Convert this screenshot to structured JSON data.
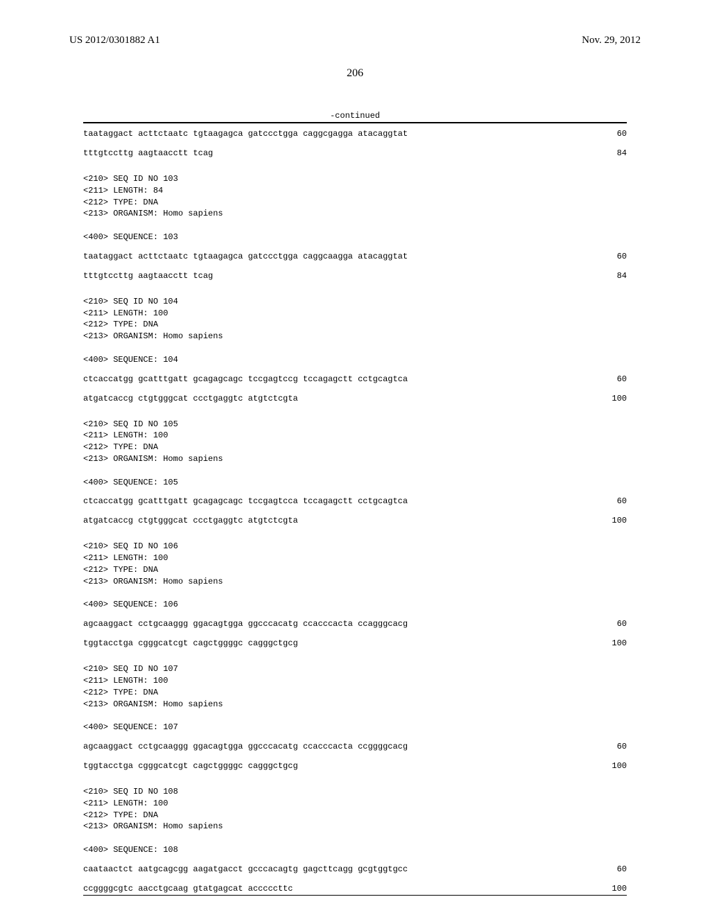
{
  "header": {
    "left": "US 2012/0301882 A1",
    "right": "Nov. 29, 2012"
  },
  "page_number": "206",
  "continued_label": "-continued",
  "entries": [
    {
      "meta": null,
      "sequences": [
        {
          "text": "taataggact acttctaatc tgtaagagca gatccctgga caggcgagga atacaggtat",
          "idx": "60"
        },
        {
          "text": "tttgtccttg aagtaacctt tcag",
          "idx": "84"
        }
      ]
    },
    {
      "meta": "<210> SEQ ID NO 103\n<211> LENGTH: 84\n<212> TYPE: DNA\n<213> ORGANISM: Homo sapiens\n\n<400> SEQUENCE: 103",
      "sequences": [
        {
          "text": "taataggact acttctaatc tgtaagagca gatccctgga caggcaagga atacaggtat",
          "idx": "60"
        },
        {
          "text": "tttgtccttg aagtaacctt tcag",
          "idx": "84"
        }
      ]
    },
    {
      "meta": "<210> SEQ ID NO 104\n<211> LENGTH: 100\n<212> TYPE: DNA\n<213> ORGANISM: Homo sapiens\n\n<400> SEQUENCE: 104",
      "sequences": [
        {
          "text": "ctcaccatgg gcatttgatt gcagagcagc tccgagtccg tccagagctt cctgcagtca",
          "idx": "60"
        },
        {
          "text": "atgatcaccg ctgtgggcat ccctgaggtc atgtctcgta",
          "idx": "100"
        }
      ]
    },
    {
      "meta": "<210> SEQ ID NO 105\n<211> LENGTH: 100\n<212> TYPE: DNA\n<213> ORGANISM: Homo sapiens\n\n<400> SEQUENCE: 105",
      "sequences": [
        {
          "text": "ctcaccatgg gcatttgatt gcagagcagc tccgagtcca tccagagctt cctgcagtca",
          "idx": "60"
        },
        {
          "text": "atgatcaccg ctgtgggcat ccctgaggtc atgtctcgta",
          "idx": "100"
        }
      ]
    },
    {
      "meta": "<210> SEQ ID NO 106\n<211> LENGTH: 100\n<212> TYPE: DNA\n<213> ORGANISM: Homo sapiens\n\n<400> SEQUENCE: 106",
      "sequences": [
        {
          "text": "agcaaggact cctgcaaggg ggacagtgga ggcccacatg ccacccacta ccagggcacg",
          "idx": "60"
        },
        {
          "text": "tggtacctga cgggcatcgt cagctggggc cagggctgcg",
          "idx": "100"
        }
      ]
    },
    {
      "meta": "<210> SEQ ID NO 107\n<211> LENGTH: 100\n<212> TYPE: DNA\n<213> ORGANISM: Homo sapiens\n\n<400> SEQUENCE: 107",
      "sequences": [
        {
          "text": "agcaaggact cctgcaaggg ggacagtgga ggcccacatg ccacccacta ccggggcacg",
          "idx": "60"
        },
        {
          "text": "tggtacctga cgggcatcgt cagctggggc cagggctgcg",
          "idx": "100"
        }
      ]
    },
    {
      "meta": "<210> SEQ ID NO 108\n<211> LENGTH: 100\n<212> TYPE: DNA\n<213> ORGANISM: Homo sapiens\n\n<400> SEQUENCE: 108",
      "sequences": [
        {
          "text": "caataactct aatgcagcgg aagatgacct gcccacagtg gagcttcagg gcgtggtgcc",
          "idx": "60"
        },
        {
          "text": "ccggggcgtc aacctgcaag gtatgagcat acccccttc",
          "idx": "100"
        }
      ]
    }
  ]
}
